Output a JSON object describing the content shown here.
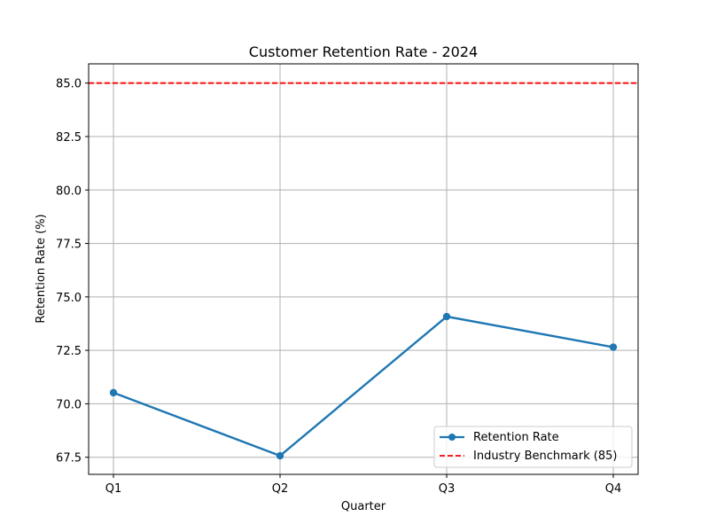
{
  "chart_data": {
    "type": "line",
    "title": "Customer Retention Rate - 2024",
    "xlabel": "Quarter",
    "ylabel": "Retention Rate (%)",
    "categories": [
      "Q1",
      "Q2",
      "Q3",
      "Q4"
    ],
    "series": [
      {
        "name": "Retention Rate",
        "values": [
          70.52,
          67.57,
          74.08,
          72.65
        ],
        "color": "#1f77b4",
        "marker": "circle",
        "line_style": "solid"
      }
    ],
    "reference_lines": [
      {
        "name": "Industry Benchmark (85)",
        "value": 85,
        "color": "#ff0000",
        "line_style": "dashed"
      }
    ],
    "ylim": [
      66.7,
      85.9
    ],
    "yticks": [
      67.5,
      70.0,
      72.5,
      75.0,
      77.5,
      80.0,
      82.5,
      85.0
    ],
    "ytick_labels": [
      "67.5",
      "70.0",
      "72.5",
      "75.0",
      "77.5",
      "80.0",
      "82.5",
      "85.0"
    ],
    "grid": true,
    "legend_position": "lower-right"
  }
}
